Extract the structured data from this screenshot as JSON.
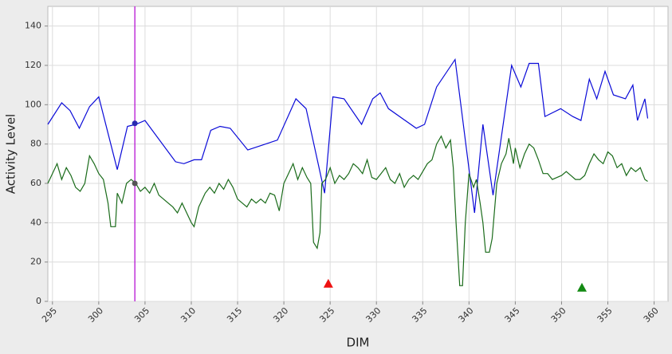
{
  "chart_data": {
    "type": "line",
    "x_label": "DIM",
    "y_label": "Activity Level",
    "xlim": [
      294.5,
      361.5
    ],
    "ylim": [
      0,
      150
    ],
    "xticks": [
      295,
      300,
      305,
      310,
      315,
      320,
      325,
      330,
      335,
      340,
      345,
      350,
      355,
      360
    ],
    "yticks": [
      0,
      20,
      40,
      60,
      80,
      100,
      120,
      140
    ],
    "grid": true,
    "cursor_x": 303.9,
    "cursor_color": "#b000d0",
    "series": [
      {
        "color": "#0a0ad8",
        "x": [
          294.5,
          296,
          296.9,
          297.9,
          299,
          300,
          302,
          303.1,
          304,
          305,
          308.3,
          309.2,
          310.3,
          311.1,
          312.1,
          313.1,
          314.2,
          316.1,
          317.4,
          319.3,
          321.3,
          322.4,
          324.4,
          325.3,
          326.5,
          328.4,
          329.6,
          330.4,
          331.3,
          334.3,
          335.2,
          336.5,
          338.5,
          340.6,
          341.5,
          342.6,
          344.6,
          345.6,
          346.5,
          347.5,
          348.2,
          349.9,
          351.2,
          352.1,
          353,
          353.8,
          354.7,
          355.6,
          356.9,
          357.7,
          358.2,
          359,
          359.3
        ],
        "values": [
          90,
          101,
          97,
          88,
          99,
          104,
          67,
          89,
          90,
          92,
          71,
          70,
          72,
          72,
          87,
          89,
          88,
          77,
          79,
          82,
          103,
          98,
          55,
          104,
          103,
          90,
          103,
          106,
          98,
          88,
          90,
          109,
          123,
          45,
          90,
          54,
          120,
          109,
          121,
          121,
          94,
          98,
          94,
          92,
          113,
          103,
          117,
          105,
          103,
          110,
          92,
          103,
          93
        ]
      },
      {
        "color": "#1a6b1a",
        "x": [
          294.5,
          295,
          295.5,
          296,
          296.5,
          297,
          297.5,
          298,
          298.5,
          299,
          299.5,
          300,
          300.5,
          301,
          301.3,
          301.8,
          302,
          302.5,
          303,
          303.5,
          304,
          304.5,
          305,
          305.5,
          306,
          306.5,
          307,
          307.5,
          308,
          308.5,
          309,
          309.5,
          310,
          310.3,
          310.8,
          311.5,
          312,
          312.5,
          313,
          313.5,
          314,
          314.5,
          315,
          315.5,
          316,
          316.5,
          317,
          317.5,
          318,
          318.5,
          319,
          319.5,
          320,
          320.5,
          321,
          321.5,
          322,
          322.5,
          322.9,
          323.2,
          323.6,
          323.9,
          324.1,
          324.5,
          325,
          325.5,
          326,
          326.5,
          327,
          327.5,
          328,
          328.5,
          329,
          329.5,
          330,
          330.5,
          331,
          331.5,
          332,
          332.5,
          333,
          333.5,
          334,
          334.5,
          335,
          335.5,
          336,
          336.5,
          337,
          337.5,
          338,
          338.3,
          338.6,
          339,
          339.3,
          339.6,
          340,
          340.5,
          340.8,
          341.2,
          341.5,
          341.8,
          342.2,
          342.5,
          343,
          343.5,
          344,
          344.3,
          344.8,
          345,
          345.5,
          346,
          346.5,
          347,
          347.5,
          348,
          348.5,
          349,
          349.5,
          350,
          350.5,
          351,
          351.5,
          352,
          352.5,
          353,
          353.5,
          354,
          354.5,
          355,
          355.5,
          356,
          356.5,
          357,
          357.5,
          358,
          358.5,
          359,
          359.3
        ],
        "values": [
          60,
          65,
          70,
          62,
          68,
          64,
          58,
          56,
          60,
          74,
          70,
          65,
          62,
          50,
          38,
          38,
          55,
          50,
          60,
          62,
          60,
          56,
          58,
          55,
          60,
          54,
          52,
          50,
          48,
          45,
          50,
          45,
          40,
          38,
          48,
          55,
          58,
          55,
          60,
          57,
          62,
          58,
          52,
          50,
          48,
          52,
          50,
          52,
          50,
          55,
          54,
          46,
          60,
          65,
          70,
          62,
          68,
          63,
          60,
          30,
          27,
          35,
          60,
          62,
          68,
          60,
          64,
          62,
          65,
          70,
          68,
          65,
          72,
          63,
          62,
          65,
          68,
          62,
          60,
          65,
          58,
          62,
          64,
          62,
          66,
          70,
          72,
          80,
          84,
          78,
          82,
          68,
          40,
          8,
          8,
          40,
          65,
          58,
          62,
          50,
          40,
          25,
          25,
          32,
          60,
          70,
          75,
          83,
          70,
          78,
          68,
          75,
          80,
          78,
          72,
          65,
          65,
          62,
          63,
          64,
          66,
          64,
          62,
          62,
          64,
          70,
          75,
          72,
          70,
          76,
          74,
          68,
          70,
          64,
          68,
          66,
          68,
          62,
          61
        ]
      }
    ],
    "markers": [
      {
        "shape": "circle",
        "x": 303.9,
        "y": 90.5,
        "color": "#2a2ab0"
      },
      {
        "shape": "circle",
        "x": 303.9,
        "y": 60,
        "color": "#555555"
      },
      {
        "shape": "triangle",
        "x": 324.8,
        "y": 9,
        "color": "#ee1111"
      },
      {
        "shape": "triangle",
        "x": 352.2,
        "y": 7,
        "color": "#138a13"
      }
    ]
  }
}
